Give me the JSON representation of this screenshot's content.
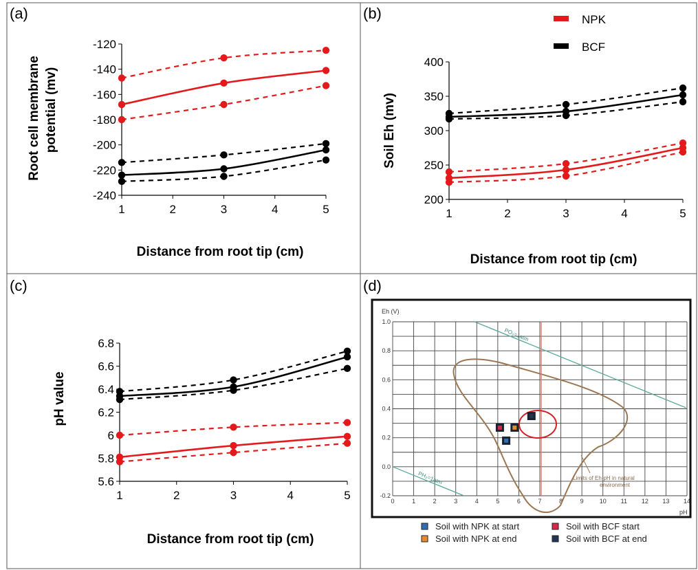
{
  "legend": {
    "entries": [
      {
        "label": "NPK",
        "color": "#e31a1c"
      },
      {
        "label": "BCF",
        "color": "#000000"
      }
    ]
  },
  "chart_data": [
    {
      "panel": "(a)",
      "type": "line",
      "xlabel": "Distance from root tip (cm)",
      "ylabel": "Root cell membrane potential (mv)",
      "xlim": [
        1,
        5
      ],
      "ylim": [
        -240,
        -120
      ],
      "xticks": [
        1,
        2,
        3,
        4,
        5
      ],
      "yticks": [
        -120,
        -140,
        -160,
        -180,
        -200,
        -220,
        -240
      ],
      "x": [
        1,
        3,
        5
      ],
      "series": [
        {
          "name": "NPK",
          "color": "#e31a1c",
          "mean": [
            -168,
            -151,
            -141
          ],
          "upper": [
            -147,
            -131,
            -125
          ],
          "lower": [
            -180,
            -168,
            -153
          ]
        },
        {
          "name": "BCF",
          "color": "#000000",
          "mean": [
            -224,
            -219,
            -204
          ],
          "upper": [
            -214,
            -208,
            -199
          ],
          "lower": [
            -229,
            -225,
            -212
          ]
        }
      ]
    },
    {
      "panel": "(b)",
      "type": "line",
      "xlabel": "Distance from root tip (cm)",
      "ylabel": "Soil Eh (mv)",
      "xlim": [
        1,
        5
      ],
      "ylim": [
        200,
        400
      ],
      "xticks": [
        1,
        2,
        3,
        4,
        5
      ],
      "yticks": [
        400,
        350,
        300,
        250,
        200
      ],
      "x": [
        1,
        3,
        5
      ],
      "series": [
        {
          "name": "NPK",
          "color": "#e31a1c",
          "mean": [
            231,
            243,
            275
          ],
          "upper": [
            240,
            252,
            282
          ],
          "lower": [
            225,
            234,
            269
          ]
        },
        {
          "name": "BCF",
          "color": "#000000",
          "mean": [
            320,
            328,
            352
          ],
          "upper": [
            325,
            338,
            362
          ],
          "lower": [
            317,
            322,
            342
          ]
        }
      ]
    },
    {
      "panel": "(c)",
      "type": "line",
      "xlabel": "Distance from root tip (cm)",
      "ylabel": "pH value",
      "xlim": [
        1,
        5
      ],
      "ylim": [
        5.6,
        6.8
      ],
      "xticks": [
        1,
        2,
        3,
        4,
        5
      ],
      "yticks": [
        "6.8",
        "6.6",
        "6.4",
        "6.2",
        "6",
        "5.8",
        "5.6"
      ],
      "x": [
        1,
        3,
        5
      ],
      "series": [
        {
          "name": "NPK",
          "color": "#e31a1c",
          "mean": [
            5.81,
            5.91,
            5.99
          ],
          "upper": [
            6.0,
            6.07,
            6.11
          ],
          "lower": [
            5.77,
            5.85,
            5.93
          ]
        },
        {
          "name": "BCF",
          "color": "#000000",
          "mean": [
            6.34,
            6.42,
            6.68
          ],
          "upper": [
            6.38,
            6.48,
            6.73
          ],
          "lower": [
            6.31,
            6.39,
            6.58
          ]
        }
      ]
    },
    {
      "panel": "(d)",
      "type": "scatter",
      "xlabel": "pH",
      "ylabel": "Eh (V)",
      "xlim": [
        0,
        14
      ],
      "ylim": [
        -0.2,
        1.0
      ],
      "xticks": [
        "0",
        "1",
        "2",
        "3",
        "4",
        "5",
        "6",
        "7",
        "8",
        "9",
        "10",
        "11",
        "12",
        "13",
        "14"
      ],
      "yticks": [
        "1.0",
        "0.8",
        "0.6",
        "0.4",
        "0.2",
        "0.0",
        "-0.2"
      ],
      "boundary_labels": {
        "upper": "PO₂=1atm",
        "lower": "PH₂=1atm"
      },
      "region_label": "Limits of Eh-pH in natural environment",
      "points": [
        {
          "label": "Soil with NPK at start",
          "pH": 5.4,
          "Eh": 0.18,
          "fill": "#2f6fb5"
        },
        {
          "label": "Soil with NPK at end",
          "pH": 5.8,
          "Eh": 0.27,
          "fill": "#e58a2e"
        },
        {
          "label": "Soil with BCF start",
          "pH": 5.1,
          "Eh": 0.27,
          "fill": "#d6284b"
        },
        {
          "label": "Soil with BCF at end",
          "pH": 6.6,
          "Eh": 0.35,
          "fill": "#1d3550"
        }
      ],
      "legend": [
        {
          "label": "Soil with NPK at start",
          "fill": "#2f6fb5"
        },
        {
          "label": "Soil with BCF start",
          "fill": "#d6284b"
        },
        {
          "label": "Soil with NPK at end",
          "fill": "#e58a2e"
        },
        {
          "label": "Soil with BCF at end",
          "fill": "#1d3550"
        }
      ]
    }
  ]
}
